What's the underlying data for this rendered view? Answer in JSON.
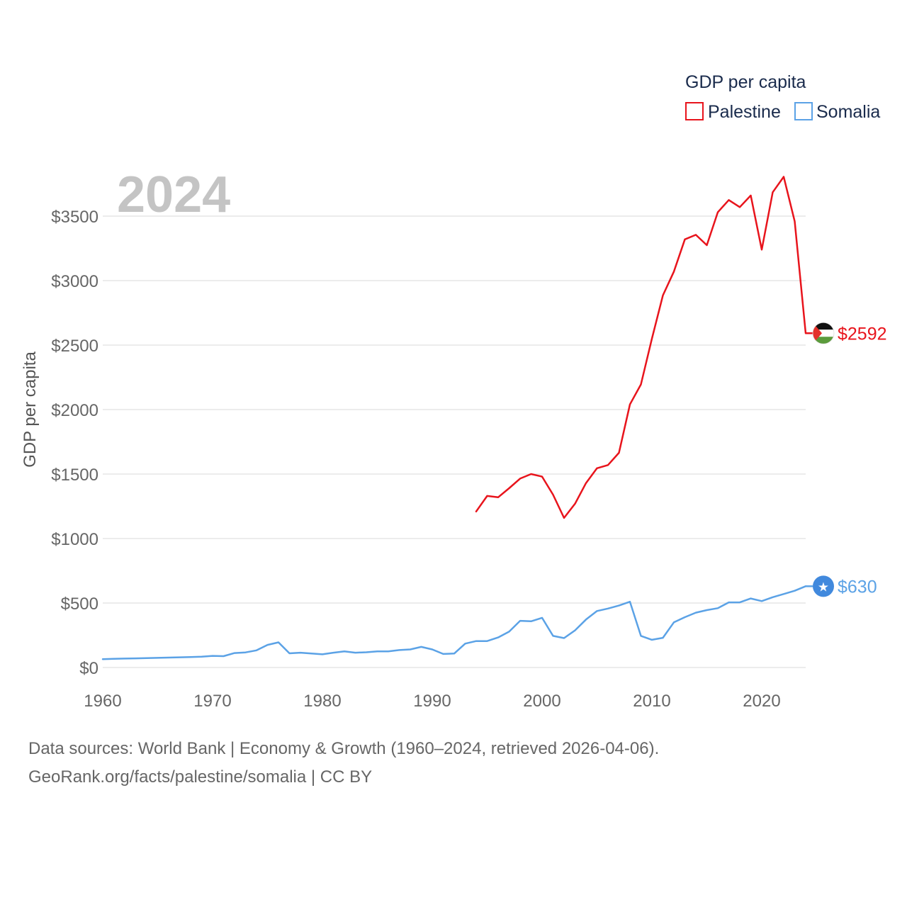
{
  "chart_data": {
    "type": "line",
    "title": "GDP per capita",
    "current_year_label": "2024",
    "ylabel": "GDP per capita",
    "xlabel": "",
    "xlim": [
      1960,
      2024
    ],
    "ylim": [
      0,
      3800
    ],
    "x_ticks": [
      1960,
      1970,
      1980,
      1990,
      2000,
      2010,
      2020
    ],
    "y_ticks": [
      {
        "value": 0,
        "label": "$0"
      },
      {
        "value": 500,
        "label": "$500"
      },
      {
        "value": 1000,
        "label": "$1000"
      },
      {
        "value": 1500,
        "label": "$1500"
      },
      {
        "value": 2000,
        "label": "$2000"
      },
      {
        "value": 2500,
        "label": "$2500"
      },
      {
        "value": 3000,
        "label": "$3000"
      },
      {
        "value": 3500,
        "label": "$3500"
      }
    ],
    "grid": true,
    "legend_position": "top-right",
    "series": [
      {
        "name": "Palestine",
        "color": "#e8141c",
        "end_label": "$2592",
        "flag_icon": "palestine-flag-icon",
        "x": [
          1994,
          1995,
          1996,
          1997,
          1998,
          1999,
          2000,
          2001,
          2002,
          2003,
          2004,
          2005,
          2006,
          2007,
          2008,
          2009,
          2010,
          2011,
          2012,
          2013,
          2014,
          2015,
          2016,
          2017,
          2018,
          2019,
          2020,
          2021,
          2022,
          2023,
          2024
        ],
        "y": [
          1210,
          1330,
          1320,
          1390,
          1465,
          1500,
          1480,
          1340,
          1160,
          1270,
          1430,
          1545,
          1570,
          1665,
          2040,
          2195,
          2550,
          2885,
          3070,
          3320,
          3355,
          3275,
          3530,
          3625,
          3570,
          3660,
          3240,
          3685,
          3805,
          3460,
          2592
        ]
      },
      {
        "name": "Somalia",
        "color": "#5ba2e6",
        "end_label": "$630",
        "flag_icon": "somalia-flag-icon",
        "x": [
          1960,
          1961,
          1962,
          1963,
          1964,
          1965,
          1966,
          1967,
          1968,
          1969,
          1970,
          1971,
          1972,
          1973,
          1974,
          1975,
          1976,
          1977,
          1978,
          1979,
          1980,
          1981,
          1982,
          1983,
          1984,
          1985,
          1986,
          1987,
          1988,
          1989,
          1990,
          1991,
          1992,
          1993,
          1994,
          1995,
          1996,
          1997,
          1998,
          1999,
          2000,
          2001,
          2002,
          2003,
          2004,
          2005,
          2006,
          2007,
          2008,
          2009,
          2010,
          2011,
          2012,
          2013,
          2014,
          2015,
          2016,
          2017,
          2018,
          2019,
          2020,
          2021,
          2022,
          2023,
          2024
        ],
        "y": [
          65,
          67,
          69,
          71,
          73,
          75,
          77,
          79,
          81,
          84,
          90,
          88,
          112,
          117,
          133,
          175,
          195,
          110,
          115,
          108,
          102,
          115,
          125,
          115,
          118,
          125,
          125,
          135,
          140,
          160,
          140,
          105,
          108,
          185,
          205,
          205,
          233,
          278,
          362,
          358,
          385,
          245,
          228,
          288,
          372,
          438,
          457,
          480,
          510,
          245,
          215,
          230,
          350,
          390,
          425,
          445,
          460,
          505,
          505,
          535,
          515,
          545,
          570,
          595,
          630
        ]
      }
    ]
  },
  "footer": {
    "line1": "Data sources: World Bank | Economy & Growth (1960–2024, retrieved 2026-04-06).",
    "line2": "GeoRank.org/facts/palestine/somalia | CC BY"
  }
}
